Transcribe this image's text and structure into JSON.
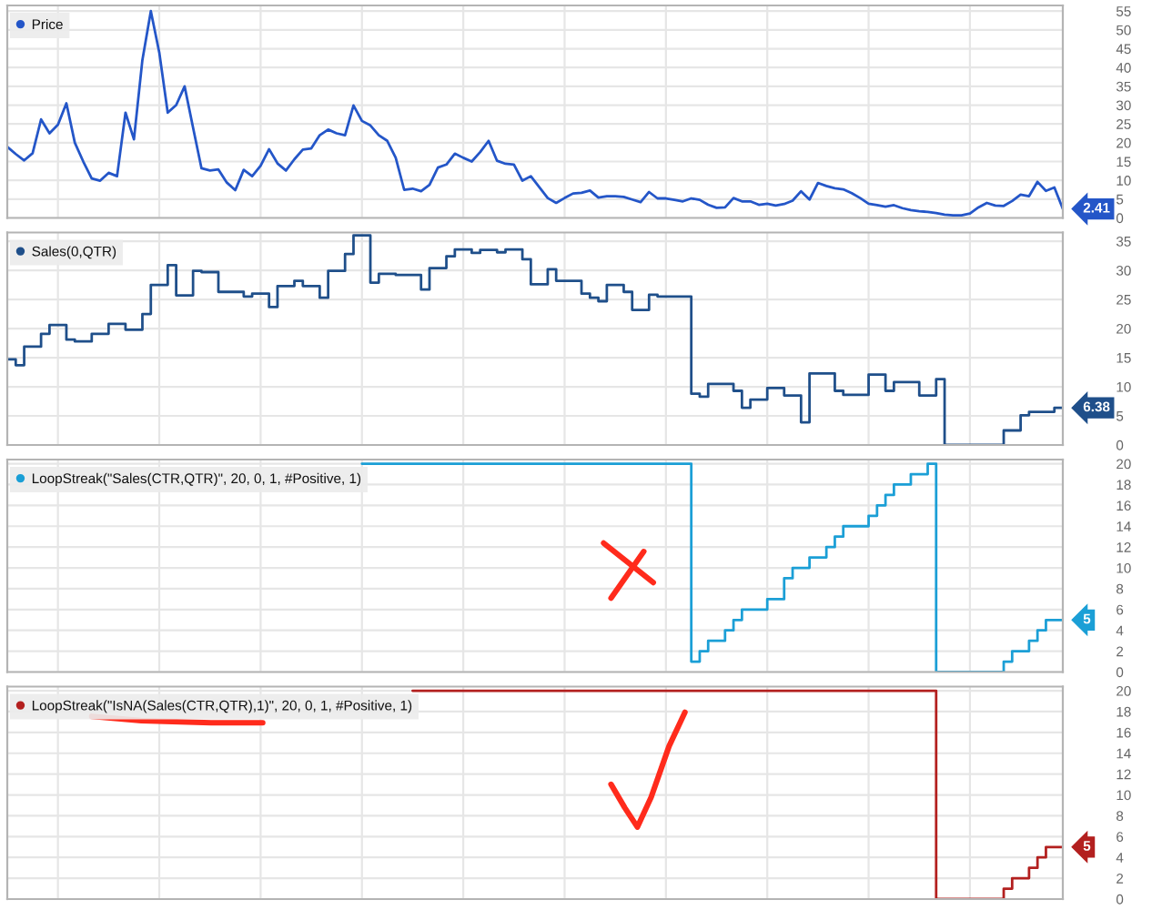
{
  "chart_data": [
    {
      "type": "line",
      "categories": [
        null,
        null,
        null,
        null,
        null,
        null,
        null,
        null,
        null,
        null,
        null,
        null,
        null,
        null,
        null,
        null,
        null,
        null,
        null,
        null,
        null,
        null,
        null,
        null,
        null,
        null,
        null,
        null,
        null,
        null,
        null,
        null,
        null,
        null,
        null,
        null,
        null,
        null,
        null,
        null,
        null,
        null,
        null,
        null,
        null,
        null,
        null,
        null,
        null,
        null,
        null,
        null,
        null,
        null,
        null,
        null,
        null,
        null,
        null,
        null,
        null,
        null,
        null,
        null,
        null,
        null,
        null,
        null,
        null,
        null,
        null,
        null,
        null,
        null,
        null,
        null,
        null,
        null,
        null,
        null,
        null,
        null,
        null,
        null,
        null,
        null,
        null,
        null,
        null,
        null,
        null,
        null,
        null,
        null,
        null,
        null,
        null,
        null,
        null,
        null,
        null,
        null,
        null,
        null,
        null,
        null,
        null,
        null,
        null,
        null,
        null,
        null,
        null,
        null,
        null,
        null,
        null,
        null,
        null,
        null,
        null,
        null,
        null,
        null,
        null,
        null
      ],
      "series": [
        {
          "name": "Price",
          "color": "#2456c8",
          "values": [
            18.9,
            17,
            15.3,
            17.2,
            26.2,
            22.5,
            24.8,
            30.5,
            20,
            15,
            10.5,
            9.9,
            12,
            11.1,
            28,
            20.9,
            42,
            55,
            44,
            28,
            30,
            35,
            24,
            13.2,
            12.6,
            12.9,
            9.4,
            7.4,
            12.8,
            11.1,
            13.9,
            18.3,
            14.5,
            12.6,
            15.6,
            18.2,
            18.5,
            22,
            23.5,
            22.5,
            22,
            29.9,
            25.8,
            24.6,
            22,
            20.5,
            16,
            7.5,
            7.8,
            7.1,
            8.8,
            13.4,
            14.2,
            17.1,
            16,
            15,
            17.5,
            20.5,
            15.2,
            14.4,
            14.2,
            9.9,
            11.1,
            8.2,
            5.3,
            4,
            5.3,
            6.5,
            6.7,
            7.3,
            5.4,
            5.8,
            5.8,
            5.6,
            4.9,
            4.2,
            6.9,
            5.2,
            5.2,
            4.8,
            4.4,
            5.2,
            4.8,
            3.5,
            2.7,
            2.8,
            5.3,
            4.4,
            4.4,
            3.5,
            3.8,
            3.3,
            3.7,
            4.6,
            7.1,
            4.9,
            9.3,
            8.5,
            7.9,
            7.6,
            6.6,
            5.3,
            3.8,
            3.4,
            3,
            3.4,
            2.6,
            2.1,
            1.8,
            1.6,
            1.3,
            0.9,
            0.7,
            0.7,
            1.2,
            2.8,
            4,
            3.3,
            3.2,
            4.5,
            6.2,
            5.8,
            9.6,
            7.2,
            8.1,
            2.41
          ],
          "value_labels": [
            null,
            null,
            null,
            null,
            null,
            null,
            null,
            null,
            null,
            null,
            null,
            null,
            null,
            null,
            null,
            null,
            null,
            null,
            null,
            null,
            null,
            null,
            null,
            null,
            null,
            null,
            null,
            null,
            null,
            null,
            null,
            null,
            null,
            null,
            null,
            null,
            null,
            null,
            null,
            null,
            null,
            null,
            null,
            null,
            null,
            null,
            null,
            null,
            null,
            null,
            null,
            null,
            null,
            null,
            null,
            null,
            null,
            null,
            null,
            null,
            null,
            null,
            null,
            null,
            null,
            null,
            null,
            null,
            null,
            null,
            null,
            null,
            null,
            null,
            null,
            null,
            null,
            null,
            null,
            null,
            null,
            null,
            null,
            null,
            null,
            null,
            null,
            null,
            null,
            null,
            null,
            null,
            null,
            null,
            null,
            null,
            null,
            null,
            null,
            null,
            null,
            null,
            null,
            null,
            null,
            null,
            null,
            null,
            null,
            null,
            null,
            null,
            null,
            null,
            null,
            null,
            null,
            null,
            null,
            null,
            null,
            null,
            null,
            null,
            null,
            "2.41"
          ]
        }
      ],
      "ylim": [
        0,
        56.5
      ],
      "yticks": [
        0,
        5,
        10,
        15,
        20,
        25,
        30,
        35,
        40,
        45,
        50,
        55
      ],
      "grid": true,
      "legend": "top left"
    },
    {
      "type": "step",
      "categories": [
        null,
        null,
        null,
        null,
        null,
        null,
        null,
        null,
        null,
        null,
        null,
        null,
        null,
        null,
        null,
        null,
        null,
        null,
        null,
        null,
        null,
        null,
        null,
        null,
        null,
        null,
        null,
        null,
        null,
        null,
        null,
        null,
        null,
        null,
        null,
        null,
        null,
        null,
        null,
        null,
        null,
        null,
        null,
        null,
        null,
        null,
        null,
        null,
        null,
        null,
        null,
        null,
        null,
        null,
        null,
        null,
        null,
        null,
        null,
        null,
        null,
        null,
        null,
        null,
        null,
        null,
        null,
        null,
        null,
        null,
        null,
        null,
        null,
        null,
        null,
        null,
        null,
        null,
        null,
        null,
        null,
        null,
        null,
        null,
        null,
        null,
        null,
        null,
        null,
        null,
        null,
        null,
        null,
        null,
        null,
        null,
        null,
        null,
        null,
        null,
        null,
        null,
        null,
        null,
        null,
        null,
        null,
        null,
        null,
        null,
        null,
        null,
        null,
        null,
        null,
        null,
        null,
        null,
        null,
        null,
        null,
        null,
        null,
        null,
        null,
        null
      ],
      "series": [
        {
          "name": "Sales(0,QTR)",
          "color": "#1f4f8a",
          "values": [
            14.7,
            13.7,
            16.9,
            16.9,
            19.1,
            20.6,
            20.6,
            18.1,
            17.8,
            17.8,
            19.1,
            19.1,
            20.8,
            20.8,
            19.8,
            19.8,
            22.5,
            27.5,
            27.5,
            30.9,
            25.7,
            25.7,
            29.9,
            29.7,
            29.7,
            26.3,
            26.3,
            26.3,
            25.5,
            26,
            26,
            23.7,
            27.3,
            27.3,
            28.2,
            27.3,
            27.3,
            25.3,
            29.9,
            29.9,
            32.8,
            36,
            36,
            27.9,
            29.4,
            29.4,
            29.2,
            29.2,
            29.2,
            26.7,
            30.4,
            30.4,
            32.4,
            33.6,
            33.6,
            33,
            33.5,
            33.5,
            33.1,
            33.6,
            33.6,
            31.9,
            27.6,
            27.6,
            30.2,
            28.2,
            28.2,
            28.2,
            26,
            25.3,
            24.7,
            27.5,
            27.5,
            26.3,
            23.2,
            23.2,
            25.8,
            25.5,
            25.5,
            25.5,
            25.5,
            8.8,
            8.3,
            10.5,
            10.5,
            10.5,
            9.3,
            6.4,
            7.8,
            7.8,
            9.8,
            9.8,
            8.5,
            8.5,
            3.9,
            12.3,
            12.3,
            12.3,
            9.3,
            8.6,
            8.6,
            8.6,
            12.1,
            12.1,
            9.3,
            10.8,
            10.8,
            10.8,
            8.5,
            8.5,
            11.3,
            0,
            0,
            0,
            0,
            0,
            0,
            0,
            2.5,
            2.5,
            5.1,
            5.7,
            5.7,
            5.7,
            6.38,
            6.38
          ],
          "value_labels": [
            null,
            null,
            null,
            null,
            null,
            null,
            null,
            null,
            null,
            null,
            null,
            null,
            null,
            null,
            null,
            null,
            null,
            null,
            null,
            null,
            null,
            null,
            null,
            null,
            null,
            null,
            null,
            null,
            null,
            null,
            null,
            null,
            null,
            null,
            null,
            null,
            null,
            null,
            null,
            null,
            null,
            null,
            null,
            null,
            null,
            null,
            null,
            null,
            null,
            null,
            null,
            null,
            null,
            null,
            null,
            null,
            null,
            null,
            null,
            null,
            null,
            null,
            null,
            null,
            null,
            null,
            null,
            null,
            null,
            null,
            null,
            null,
            null,
            null,
            null,
            null,
            null,
            null,
            null,
            null,
            null,
            null,
            null,
            null,
            null,
            null,
            null,
            null,
            null,
            null,
            null,
            null,
            null,
            null,
            null,
            null,
            null,
            null,
            null,
            null,
            null,
            null,
            null,
            null,
            null,
            null,
            null,
            null,
            null,
            null,
            null,
            null,
            null,
            null,
            null,
            null,
            null,
            null,
            null,
            null,
            null,
            null,
            null,
            null,
            null,
            "6.38"
          ]
        }
      ],
      "ylim": [
        0,
        36.5
      ],
      "yticks": [
        0,
        5,
        10,
        15,
        20,
        25,
        30,
        35
      ],
      "grid": true,
      "legend": "top left"
    },
    {
      "type": "step",
      "categories": [
        null,
        null,
        null,
        null,
        null,
        null,
        null,
        null,
        null,
        null,
        null,
        null,
        null,
        null,
        null,
        null,
        null,
        null,
        null,
        null,
        null,
        null,
        null,
        null,
        null,
        null,
        null,
        null,
        null,
        null,
        null,
        null,
        null,
        null,
        null,
        null,
        null,
        null,
        null,
        null,
        null,
        null,
        null,
        null,
        null,
        null,
        null,
        null,
        null,
        null,
        null,
        null,
        null,
        null,
        null,
        null,
        null,
        null,
        null,
        null,
        null,
        null,
        null,
        null,
        null,
        null,
        null,
        null,
        null,
        null,
        null,
        null,
        null,
        null,
        null,
        null,
        null,
        null,
        null,
        null,
        null,
        null,
        null,
        null,
        null,
        null,
        null,
        null,
        null,
        null,
        null,
        null,
        null,
        null,
        null,
        null,
        null,
        null,
        null,
        null,
        null,
        null,
        null,
        null,
        null,
        null,
        null,
        null,
        null,
        null,
        null,
        null,
        null,
        null,
        null,
        null,
        null,
        null,
        null,
        null,
        null,
        null,
        null,
        null,
        null,
        null
      ],
      "series": [
        {
          "name": "LoopStreak(\"Sales(CTR,QTR)\", 20, 0, 1, #Positive, 1)",
          "color": "#1b9fd6",
          "values": [
            null,
            null,
            null,
            null,
            null,
            null,
            null,
            null,
            null,
            null,
            null,
            null,
            null,
            null,
            null,
            null,
            null,
            null,
            null,
            null,
            null,
            null,
            null,
            null,
            null,
            null,
            null,
            null,
            null,
            null,
            null,
            null,
            null,
            null,
            null,
            null,
            null,
            null,
            null,
            null,
            null,
            null,
            20,
            20,
            20,
            20,
            20,
            20,
            20,
            20,
            20,
            20,
            20,
            20,
            20,
            20,
            20,
            20,
            20,
            20,
            20,
            20,
            20,
            20,
            20,
            20,
            20,
            20,
            20,
            20,
            20,
            20,
            20,
            20,
            20,
            20,
            20,
            20,
            20,
            20,
            20,
            1,
            2,
            3,
            3,
            4,
            5,
            6,
            6,
            6,
            7,
            7,
            9,
            10,
            10,
            11,
            11,
            12,
            13,
            14,
            14,
            14,
            15,
            16,
            17,
            18,
            18,
            19,
            19,
            20,
            0,
            0,
            0,
            0,
            0,
            0,
            0,
            0,
            1,
            2,
            2,
            3,
            4,
            5,
            5,
            5
          ],
          "value_labels": [
            null,
            null,
            null,
            null,
            null,
            null,
            null,
            null,
            null,
            null,
            null,
            null,
            null,
            null,
            null,
            null,
            null,
            null,
            null,
            null,
            null,
            null,
            null,
            null,
            null,
            null,
            null,
            null,
            null,
            null,
            null,
            null,
            null,
            null,
            null,
            null,
            null,
            null,
            null,
            null,
            null,
            null,
            null,
            null,
            null,
            null,
            null,
            null,
            null,
            null,
            null,
            null,
            null,
            null,
            null,
            null,
            null,
            null,
            null,
            null,
            null,
            null,
            null,
            null,
            null,
            null,
            null,
            null,
            null,
            null,
            null,
            null,
            null,
            null,
            null,
            null,
            null,
            null,
            null,
            null,
            null,
            null,
            null,
            null,
            null,
            null,
            null,
            null,
            null,
            null,
            null,
            null,
            null,
            null,
            null,
            null,
            null,
            null,
            null,
            null,
            null,
            null,
            null,
            null,
            null,
            null,
            null,
            null,
            null,
            null,
            null,
            null,
            null,
            null,
            null,
            null,
            null,
            null,
            null,
            null,
            null,
            null,
            null,
            null,
            null,
            "5"
          ]
        }
      ],
      "ylim": [
        0,
        20.4
      ],
      "yticks": [
        0,
        2,
        4,
        6,
        8,
        10,
        12,
        14,
        16,
        18,
        20
      ],
      "grid": true,
      "legend": "top left"
    },
    {
      "type": "step",
      "categories": [
        null,
        null,
        null,
        null,
        null,
        null,
        null,
        null,
        null,
        null,
        null,
        null,
        null,
        null,
        null,
        null,
        null,
        null,
        null,
        null,
        null,
        null,
        null,
        null,
        null,
        null,
        null,
        null,
        null,
        null,
        null,
        null,
        null,
        null,
        null,
        null,
        null,
        null,
        null,
        null,
        null,
        null,
        null,
        null,
        null,
        null,
        null,
        null,
        null,
        null,
        null,
        null,
        null,
        null,
        null,
        null,
        null,
        null,
        null,
        null,
        null,
        null,
        null,
        null,
        null,
        null,
        null,
        null,
        null,
        null,
        null,
        null,
        null,
        null,
        null,
        null,
        null,
        null,
        null,
        null,
        null,
        null,
        null,
        null,
        null,
        null,
        null,
        null,
        null,
        null,
        null,
        null,
        null,
        null,
        null,
        null,
        null,
        null,
        null,
        null,
        null,
        null,
        null,
        null,
        null,
        null,
        null,
        null,
        null,
        null,
        null,
        null,
        null,
        null,
        null,
        null,
        null,
        null,
        null,
        null,
        null,
        null,
        null,
        null,
        null,
        null
      ],
      "series": [
        {
          "name": "LoopStreak(\"IsNA(Sales(CTR,QTR),1)\", 20, 0, 1, #Positive, 1)",
          "color": "#b3201f",
          "values": [
            null,
            null,
            null,
            null,
            null,
            null,
            null,
            null,
            null,
            null,
            null,
            null,
            null,
            null,
            null,
            null,
            null,
            null,
            null,
            null,
            null,
            null,
            null,
            null,
            null,
            null,
            null,
            null,
            null,
            null,
            null,
            null,
            null,
            null,
            null,
            null,
            null,
            null,
            null,
            null,
            null,
            null,
            null,
            null,
            null,
            null,
            null,
            null,
            20,
            20,
            20,
            20,
            20,
            20,
            20,
            20,
            20,
            20,
            20,
            20,
            20,
            20,
            20,
            20,
            20,
            20,
            20,
            20,
            20,
            20,
            20,
            20,
            20,
            20,
            20,
            20,
            20,
            20,
            20,
            20,
            20,
            20,
            20,
            20,
            20,
            20,
            20,
            20,
            20,
            20,
            20,
            20,
            20,
            20,
            20,
            20,
            20,
            20,
            20,
            20,
            20,
            20,
            20,
            20,
            20,
            20,
            20,
            20,
            20,
            20,
            0,
            0,
            0,
            0,
            0,
            0,
            0,
            0,
            1,
            2,
            2,
            3,
            4,
            5,
            5,
            5
          ],
          "value_labels": [
            null,
            null,
            null,
            null,
            null,
            null,
            null,
            null,
            null,
            null,
            null,
            null,
            null,
            null,
            null,
            null,
            null,
            null,
            null,
            null,
            null,
            null,
            null,
            null,
            null,
            null,
            null,
            null,
            null,
            null,
            null,
            null,
            null,
            null,
            null,
            null,
            null,
            null,
            null,
            null,
            null,
            null,
            null,
            null,
            null,
            null,
            null,
            null,
            null,
            null,
            null,
            null,
            null,
            null,
            null,
            null,
            null,
            null,
            null,
            null,
            null,
            null,
            null,
            null,
            null,
            null,
            null,
            null,
            null,
            null,
            null,
            null,
            null,
            null,
            null,
            null,
            null,
            null,
            null,
            null,
            null,
            null,
            null,
            null,
            null,
            null,
            null,
            null,
            null,
            null,
            null,
            null,
            null,
            null,
            null,
            null,
            null,
            null,
            null,
            null,
            null,
            null,
            null,
            null,
            null,
            null,
            null,
            null,
            null,
            null,
            null,
            null,
            null,
            null,
            null,
            null,
            null,
            null,
            null,
            null,
            null,
            null,
            null,
            null,
            null,
            "5"
          ]
        }
      ],
      "ylim": [
        0,
        20.4
      ],
      "yticks": [
        0,
        2,
        4,
        6,
        8,
        10,
        12,
        14,
        16,
        18,
        20
      ],
      "grid": true,
      "legend": "top left"
    }
  ]
}
